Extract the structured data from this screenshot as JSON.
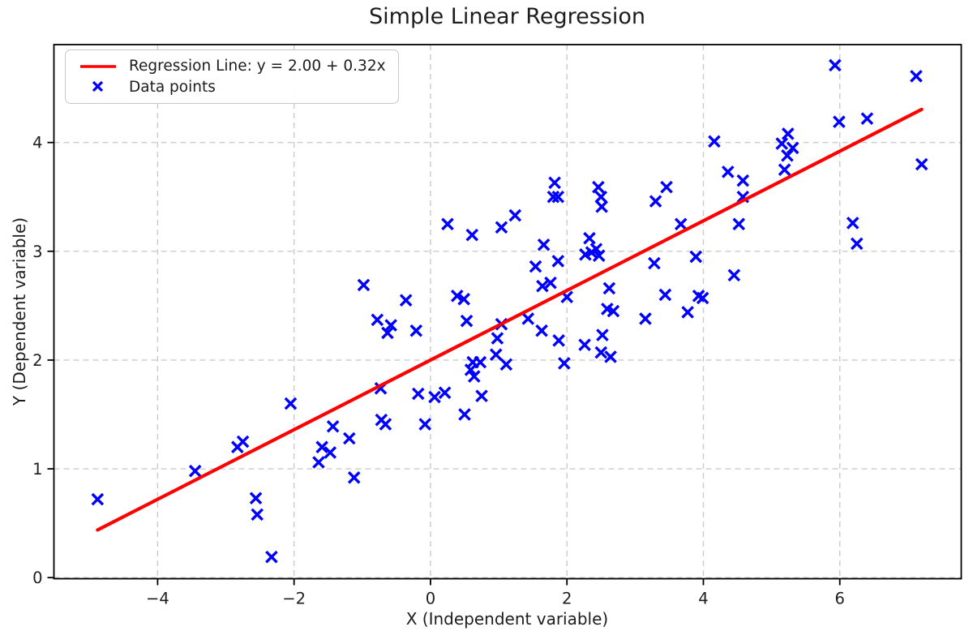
{
  "chart_data": {
    "type": "scatter",
    "title": "Simple Linear Regression",
    "xlabel": "X (Independent variable)",
    "ylabel": "Y (Dependent variable)",
    "xlim": [
      -5.52,
      7.78
    ],
    "ylim": [
      -0.01,
      4.9
    ],
    "xticks": [
      {
        "v": -4,
        "label": "−4"
      },
      {
        "v": -2,
        "label": "−2"
      },
      {
        "v": 0,
        "label": "0"
      },
      {
        "v": 2,
        "label": "2"
      },
      {
        "v": 4,
        "label": "4"
      },
      {
        "v": 6,
        "label": "6"
      }
    ],
    "yticks": [
      {
        "v": 0,
        "label": "0"
      },
      {
        "v": 1,
        "label": "1"
      },
      {
        "v": 2,
        "label": "2"
      },
      {
        "v": 3,
        "label": "3"
      },
      {
        "v": 4,
        "label": "4"
      }
    ],
    "grid": "dashed",
    "colors": {
      "marker": "#0000ff",
      "line": "#ff0000",
      "grid": "#cbcbcb",
      "spine": "#000000",
      "text": "#1d1d1d",
      "background": "#ffffff"
    },
    "regression": {
      "label": "Regression Line: y = 2.00 + 0.32x",
      "intercept": 2.0,
      "slope": 0.32,
      "x_start": -4.88,
      "x_end": 7.2
    },
    "legend": {
      "position": "upper left",
      "entries": [
        {
          "type": "line",
          "label": "Regression Line: y = 2.00 + 0.32x"
        },
        {
          "type": "marker",
          "label": "Data points"
        }
      ]
    },
    "points": [
      [
        -4.88,
        0.72
      ],
      [
        -3.45,
        0.98
      ],
      [
        -2.83,
        1.2
      ],
      [
        -2.75,
        1.25
      ],
      [
        -2.56,
        0.73
      ],
      [
        -2.54,
        0.58
      ],
      [
        -2.33,
        0.19
      ],
      [
        -2.05,
        1.6
      ],
      [
        -1.64,
        1.06
      ],
      [
        -1.59,
        1.2
      ],
      [
        -1.47,
        1.15
      ],
      [
        -1.43,
        1.39
      ],
      [
        -1.19,
        1.28
      ],
      [
        -1.12,
        0.92
      ],
      [
        -0.98,
        2.69
      ],
      [
        -0.78,
        2.37
      ],
      [
        -0.73,
        1.74
      ],
      [
        -0.72,
        1.45
      ],
      [
        -0.66,
        1.41
      ],
      [
        -0.63,
        2.25
      ],
      [
        -0.58,
        2.32
      ],
      [
        -0.36,
        2.55
      ],
      [
        -0.21,
        2.27
      ],
      [
        -0.18,
        1.69
      ],
      [
        -0.08,
        1.41
      ],
      [
        0.06,
        1.66
      ],
      [
        0.21,
        1.7
      ],
      [
        0.25,
        3.25
      ],
      [
        0.39,
        2.59
      ],
      [
        0.49,
        2.56
      ],
      [
        0.5,
        1.5
      ],
      [
        0.53,
        2.36
      ],
      [
        0.59,
        1.91
      ],
      [
        0.61,
        3.15
      ],
      [
        0.62,
        1.98
      ],
      [
        0.64,
        1.85
      ],
      [
        0.73,
        1.98
      ],
      [
        0.75,
        1.67
      ],
      [
        0.96,
        2.05
      ],
      [
        0.98,
        2.2
      ],
      [
        1.04,
        2.33
      ],
      [
        1.04,
        3.22
      ],
      [
        1.11,
        1.96
      ],
      [
        1.24,
        3.33
      ],
      [
        1.43,
        2.38
      ],
      [
        1.54,
        2.86
      ],
      [
        1.63,
        2.27
      ],
      [
        1.64,
        2.68
      ],
      [
        1.66,
        3.06
      ],
      [
        1.76,
        2.71
      ],
      [
        1.8,
        3.5
      ],
      [
        1.82,
        3.63
      ],
      [
        1.87,
        3.5
      ],
      [
        1.87,
        2.91
      ],
      [
        1.88,
        2.18
      ],
      [
        1.96,
        1.97
      ],
      [
        2.0,
        2.58
      ],
      [
        2.26,
        2.14
      ],
      [
        2.27,
        2.97
      ],
      [
        2.33,
        3.12
      ],
      [
        2.36,
        2.99
      ],
      [
        2.43,
        3.02
      ],
      [
        2.46,
        3.59
      ],
      [
        2.47,
        2.96
      ],
      [
        2.5,
        2.07
      ],
      [
        2.5,
        3.5
      ],
      [
        2.51,
        3.41
      ],
      [
        2.52,
        2.23
      ],
      [
        2.59,
        2.47
      ],
      [
        2.62,
        2.66
      ],
      [
        2.64,
        2.03
      ],
      [
        2.68,
        2.45
      ],
      [
        3.15,
        2.38
      ],
      [
        3.28,
        2.89
      ],
      [
        3.3,
        3.46
      ],
      [
        3.44,
        2.6
      ],
      [
        3.46,
        3.59
      ],
      [
        3.67,
        3.25
      ],
      [
        3.77,
        2.44
      ],
      [
        3.89,
        2.95
      ],
      [
        3.93,
        2.59
      ],
      [
        3.99,
        2.57
      ],
      [
        4.16,
        4.01
      ],
      [
        4.36,
        3.73
      ],
      [
        4.45,
        2.78
      ],
      [
        4.52,
        3.25
      ],
      [
        4.58,
        3.65
      ],
      [
        4.58,
        3.5
      ],
      [
        5.15,
        3.99
      ],
      [
        5.19,
        3.75
      ],
      [
        5.23,
        3.88
      ],
      [
        5.24,
        4.08
      ],
      [
        5.31,
        3.95
      ],
      [
        5.93,
        4.71
      ],
      [
        5.99,
        4.19
      ],
      [
        6.19,
        3.26
      ],
      [
        6.25,
        3.07
      ],
      [
        6.4,
        4.22
      ],
      [
        7.12,
        4.61
      ],
      [
        7.2,
        3.8
      ]
    ]
  }
}
